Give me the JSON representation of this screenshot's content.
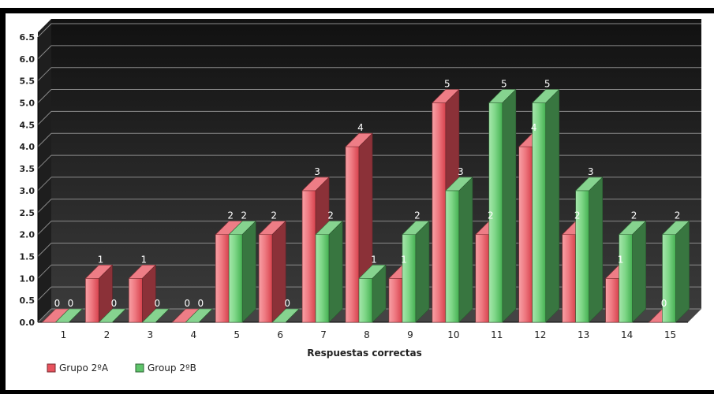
{
  "chart_data": {
    "type": "bar",
    "title": "",
    "xlabel": "Respuestas correctas",
    "ylabel": "",
    "ylim": [
      0,
      6.5
    ],
    "ytick_step": 0.5,
    "y_ticks": [
      "0.0",
      "0.5",
      "1.0",
      "1.5",
      "2.0",
      "2.5",
      "3.0",
      "3.5",
      "4.0",
      "4.5",
      "5.0",
      "5.5",
      "6.0",
      "6.5"
    ],
    "grid": true,
    "legend_position": "bottom-left",
    "categories": [
      "1",
      "2",
      "3",
      "4",
      "5",
      "6",
      "7",
      "8",
      "9",
      "10",
      "11",
      "12",
      "13",
      "14",
      "15"
    ],
    "series": [
      {
        "name": "Grupo 2ºA",
        "color": "#e8525d",
        "values": [
          0,
          1,
          1,
          0,
          2,
          2,
          3,
          4,
          1,
          5,
          2,
          4,
          2,
          1,
          0
        ]
      },
      {
        "name": "Group 2ºB",
        "color": "#5ec46a",
        "values": [
          0,
          0,
          0,
          0,
          2,
          0,
          2,
          1,
          2,
          3,
          5,
          5,
          3,
          2,
          2
        ]
      }
    ]
  }
}
